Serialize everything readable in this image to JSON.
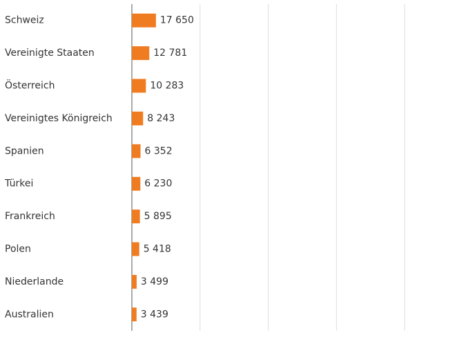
{
  "chart_data": {
    "type": "bar",
    "orientation": "horizontal",
    "categories": [
      "Schweiz",
      "Vereinigte Staaten",
      "Österreich",
      "Vereinigtes Königreich",
      "Spanien",
      "Türkei",
      "Frankreich",
      "Polen",
      "Niederlande",
      "Australien"
    ],
    "values": [
      17650,
      12781,
      10283,
      8243,
      6352,
      6230,
      5895,
      5418,
      3499,
      3439
    ],
    "value_labels": [
      "17 650",
      "12 781",
      "10 283",
      "8 243",
      "6 352",
      "6 230",
      "5 895",
      "5 418",
      "3 499",
      "3 439"
    ],
    "color": "#f07c22",
    "xlim": [
      0,
      245000
    ],
    "xticks": [
      0,
      50000,
      100000,
      150000,
      200000
    ],
    "grid": true
  }
}
